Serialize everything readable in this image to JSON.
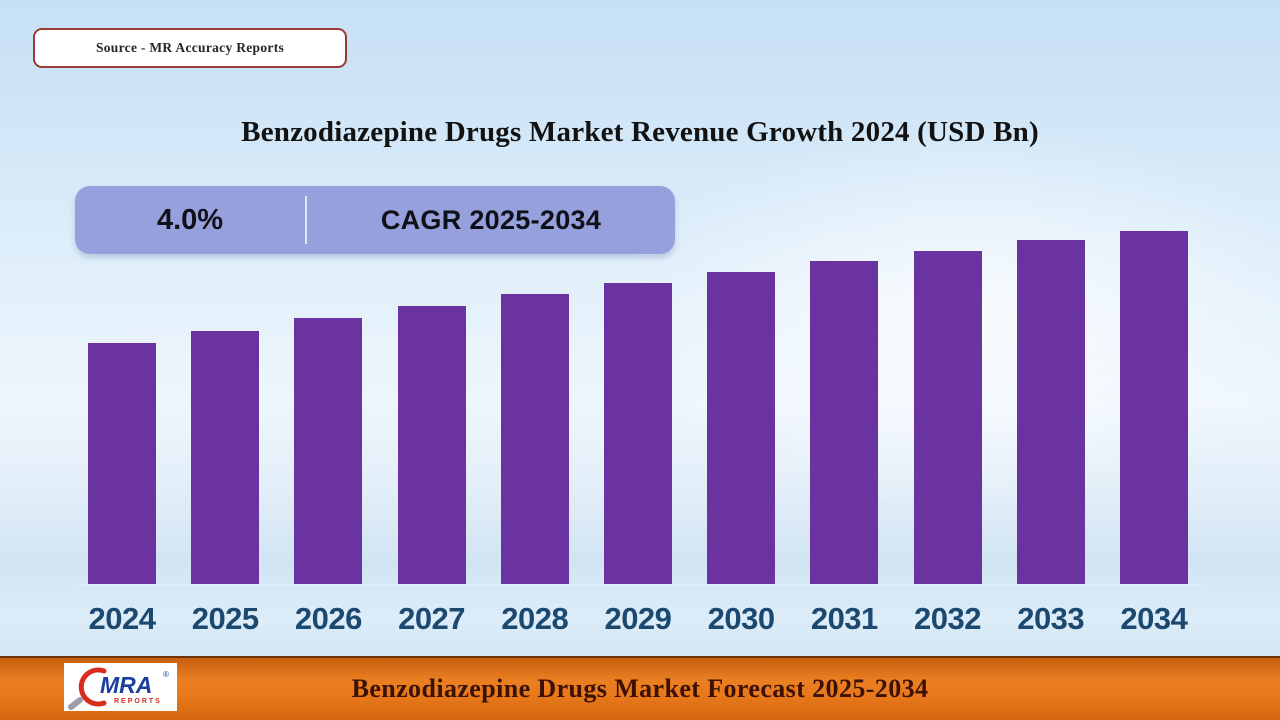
{
  "source_box": {
    "label": "Source - MR Accuracy Reports"
  },
  "header": {
    "title": "Benzodiazepine Drugs Market Revenue Growth 2024 (USD Bn)"
  },
  "cagr_badge": {
    "value": "4.0%",
    "label": "CAGR 2025-2034"
  },
  "chart_data": {
    "type": "bar",
    "title": "Benzodiazepine Drugs Market Revenue Growth 2024 (USD Bn)",
    "categories": [
      "2024",
      "2025",
      "2026",
      "2027",
      "2028",
      "2029",
      "2030",
      "2031",
      "2032",
      "2033",
      "2034"
    ],
    "values": [
      241,
      253,
      266,
      278,
      290,
      301,
      312,
      323,
      333,
      344,
      353
    ],
    "values_note": "numeric y-axis not shown in image; values are relative bar heights in px consistent with ~4.0% CAGR growth",
    "cagr_percent": 4.0,
    "xlabel": "",
    "ylabel": "",
    "grid": false,
    "legend_position": "none",
    "bar_color": "#6a339f"
  },
  "footer": {
    "title": "Benzodiazepine Drugs Market Forecast 2025-2034",
    "logo": {
      "brand": "MRA",
      "sub": "REPORTS",
      "registered_mark": "®"
    }
  },
  "colors": {
    "bar": "#6a339f",
    "badge_bg": "#96a0dc",
    "year_label_text": "#1b4970",
    "banner_orange": "#e8781b",
    "source_border": "#9a3c34",
    "background_top": "#c7e0f5"
  }
}
